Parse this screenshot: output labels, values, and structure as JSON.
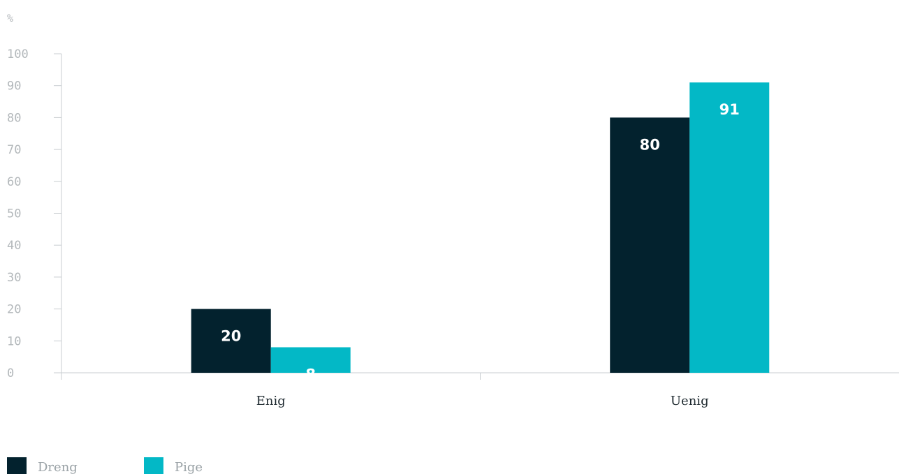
{
  "chart_data": {
    "type": "bar",
    "ylabel": "%",
    "ylim": [
      0,
      100
    ],
    "yticks": [
      0,
      10,
      20,
      30,
      40,
      50,
      60,
      70,
      80,
      90,
      100
    ],
    "categories": [
      "Enig",
      "Uenig"
    ],
    "series": [
      {
        "name": "Dreng",
        "values": [
          20,
          80
        ],
        "color": "#03222e"
      },
      {
        "name": "Pige",
        "values": [
          8,
          91
        ],
        "color": "#03b8c6"
      }
    ],
    "legend": "bottom-left",
    "grid": false
  }
}
